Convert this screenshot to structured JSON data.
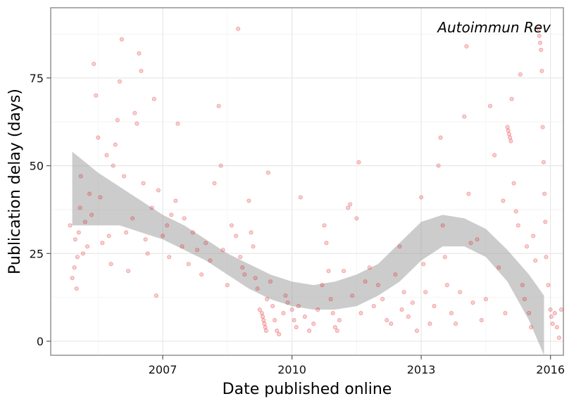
{
  "chart_data": {
    "type": "scatter",
    "title": "",
    "annotation": "Autoimmun Rev",
    "xlabel": "Date published online",
    "ylabel": "Publication delay (days)",
    "x_unit": "year",
    "xlim": [
      2004.4,
      2016.3
    ],
    "ylim": [
      -4,
      95
    ],
    "xticks": [
      2007,
      2010,
      2013,
      2016
    ],
    "yticks": [
      0,
      25,
      50,
      75
    ],
    "grid": true,
    "point_color": "#e31a1c",
    "point_opacity": 0.2,
    "band_color": "#999999",
    "smooth_band": [
      {
        "x": 2004.9,
        "lo": 33,
        "hi": 54
      },
      {
        "x": 2005.5,
        "lo": 33,
        "hi": 48
      },
      {
        "x": 2006.0,
        "lo": 33,
        "hi": 44
      },
      {
        "x": 2006.5,
        "lo": 31,
        "hi": 40
      },
      {
        "x": 2007.0,
        "lo": 29,
        "hi": 36
      },
      {
        "x": 2007.5,
        "lo": 26,
        "hi": 33
      },
      {
        "x": 2008.0,
        "lo": 23,
        "hi": 29
      },
      {
        "x": 2008.5,
        "lo": 19,
        "hi": 25
      },
      {
        "x": 2009.0,
        "lo": 15,
        "hi": 22
      },
      {
        "x": 2009.5,
        "lo": 12,
        "hi": 19
      },
      {
        "x": 2010.0,
        "lo": 10,
        "hi": 17
      },
      {
        "x": 2010.5,
        "lo": 9,
        "hi": 16
      },
      {
        "x": 2011.0,
        "lo": 9,
        "hi": 17
      },
      {
        "x": 2011.5,
        "lo": 10,
        "hi": 19
      },
      {
        "x": 2012.0,
        "lo": 13,
        "hi": 22
      },
      {
        "x": 2012.5,
        "lo": 17,
        "hi": 28
      },
      {
        "x": 2013.0,
        "lo": 23,
        "hi": 34
      },
      {
        "x": 2013.5,
        "lo": 27,
        "hi": 36
      },
      {
        "x": 2014.0,
        "lo": 27,
        "hi": 35
      },
      {
        "x": 2014.5,
        "lo": 24,
        "hi": 32
      },
      {
        "x": 2015.0,
        "lo": 17,
        "hi": 26
      },
      {
        "x": 2015.5,
        "lo": 6,
        "hi": 19
      },
      {
        "x": 2015.85,
        "lo": -4,
        "hi": 13
      }
    ],
    "points": [
      [
        2004.85,
        33
      ],
      [
        2004.9,
        18
      ],
      [
        2004.95,
        21
      ],
      [
        2004.97,
        29
      ],
      [
        2005.0,
        15
      ],
      [
        2005.02,
        24
      ],
      [
        2005.05,
        31
      ],
      [
        2005.08,
        38
      ],
      [
        2005.1,
        47
      ],
      [
        2005.15,
        25
      ],
      [
        2005.2,
        34
      ],
      [
        2005.25,
        27
      ],
      [
        2005.3,
        42
      ],
      [
        2005.35,
        36
      ],
      [
        2005.4,
        79
      ],
      [
        2005.45,
        70
      ],
      [
        2005.5,
        58
      ],
      [
        2005.55,
        41
      ],
      [
        2005.6,
        28
      ],
      [
        2005.7,
        53
      ],
      [
        2005.75,
        30
      ],
      [
        2005.8,
        22
      ],
      [
        2005.85,
        50
      ],
      [
        2005.9,
        56
      ],
      [
        2005.95,
        63
      ],
      [
        2006.0,
        74
      ],
      [
        2006.05,
        86
      ],
      [
        2006.1,
        47
      ],
      [
        2006.15,
        31
      ],
      [
        2006.2,
        20
      ],
      [
        2006.3,
        35
      ],
      [
        2006.35,
        65
      ],
      [
        2006.4,
        62
      ],
      [
        2006.45,
        82
      ],
      [
        2006.5,
        77
      ],
      [
        2006.55,
        45
      ],
      [
        2006.6,
        29
      ],
      [
        2006.65,
        25
      ],
      [
        2006.75,
        38
      ],
      [
        2006.8,
        69
      ],
      [
        2006.85,
        13
      ],
      [
        2006.9,
        43
      ],
      [
        2007.0,
        30
      ],
      [
        2007.1,
        33
      ],
      [
        2007.15,
        24
      ],
      [
        2007.2,
        36
      ],
      [
        2007.3,
        40
      ],
      [
        2007.35,
        62
      ],
      [
        2007.45,
        27
      ],
      [
        2007.5,
        35
      ],
      [
        2007.6,
        22
      ],
      [
        2007.7,
        31
      ],
      [
        2007.8,
        26
      ],
      [
        2007.9,
        19
      ],
      [
        2008.0,
        28
      ],
      [
        2008.1,
        23
      ],
      [
        2008.2,
        45
      ],
      [
        2008.3,
        67
      ],
      [
        2008.35,
        50
      ],
      [
        2008.4,
        26
      ],
      [
        2008.5,
        16
      ],
      [
        2008.6,
        33
      ],
      [
        2008.7,
        30
      ],
      [
        2008.75,
        89
      ],
      [
        2008.8,
        24
      ],
      [
        2008.85,
        21
      ],
      [
        2008.9,
        19
      ],
      [
        2009.0,
        40
      ],
      [
        2009.05,
        31
      ],
      [
        2009.1,
        27
      ],
      [
        2009.15,
        18
      ],
      [
        2009.2,
        15
      ],
      [
        2009.25,
        9
      ],
      [
        2009.3,
        8
      ],
      [
        2009.32,
        7
      ],
      [
        2009.34,
        6
      ],
      [
        2009.36,
        5
      ],
      [
        2009.38,
        4
      ],
      [
        2009.4,
        3
      ],
      [
        2009.42,
        12
      ],
      [
        2009.45,
        48
      ],
      [
        2009.5,
        17
      ],
      [
        2009.55,
        10
      ],
      [
        2009.6,
        6
      ],
      [
        2009.65,
        3
      ],
      [
        2009.7,
        2
      ],
      [
        2009.8,
        8
      ],
      [
        2009.85,
        13
      ],
      [
        2009.9,
        11
      ],
      [
        2010.0,
        9
      ],
      [
        2010.05,
        6
      ],
      [
        2010.1,
        4
      ],
      [
        2010.15,
        10
      ],
      [
        2010.2,
        41
      ],
      [
        2010.3,
        7
      ],
      [
        2010.4,
        3
      ],
      [
        2010.5,
        5
      ],
      [
        2010.6,
        9
      ],
      [
        2010.7,
        16
      ],
      [
        2010.75,
        33
      ],
      [
        2010.8,
        28
      ],
      [
        2010.85,
        20
      ],
      [
        2010.9,
        12
      ],
      [
        2010.95,
        8
      ],
      [
        2011.0,
        4
      ],
      [
        2011.05,
        3
      ],
      [
        2011.1,
        6
      ],
      [
        2011.2,
        20
      ],
      [
        2011.3,
        38
      ],
      [
        2011.35,
        39
      ],
      [
        2011.4,
        13
      ],
      [
        2011.5,
        35
      ],
      [
        2011.55,
        51
      ],
      [
        2011.6,
        8
      ],
      [
        2011.7,
        17
      ],
      [
        2011.8,
        21
      ],
      [
        2011.9,
        10
      ],
      [
        2012.0,
        16
      ],
      [
        2012.1,
        12
      ],
      [
        2012.2,
        6
      ],
      [
        2012.3,
        5
      ],
      [
        2012.4,
        19
      ],
      [
        2012.5,
        27
      ],
      [
        2012.55,
        9
      ],
      [
        2012.6,
        14
      ],
      [
        2012.7,
        7
      ],
      [
        2012.8,
        11
      ],
      [
        2012.9,
        3
      ],
      [
        2013.0,
        41
      ],
      [
        2013.05,
        22
      ],
      [
        2013.1,
        14
      ],
      [
        2013.2,
        5
      ],
      [
        2013.3,
        10
      ],
      [
        2013.4,
        50
      ],
      [
        2013.45,
        58
      ],
      [
        2013.5,
        33
      ],
      [
        2013.55,
        24
      ],
      [
        2013.6,
        16
      ],
      [
        2013.7,
        8
      ],
      [
        2013.8,
        5
      ],
      [
        2013.9,
        14
      ],
      [
        2014.0,
        64
      ],
      [
        2014.05,
        84
      ],
      [
        2014.1,
        42
      ],
      [
        2014.15,
        28
      ],
      [
        2014.2,
        11
      ],
      [
        2014.3,
        29
      ],
      [
        2014.4,
        6
      ],
      [
        2014.5,
        12
      ],
      [
        2014.6,
        67
      ],
      [
        2014.7,
        53
      ],
      [
        2014.8,
        21
      ],
      [
        2014.9,
        40
      ],
      [
        2014.95,
        8
      ],
      [
        2015.0,
        61
      ],
      [
        2015.02,
        60
      ],
      [
        2015.04,
        59
      ],
      [
        2015.06,
        58
      ],
      [
        2015.08,
        57
      ],
      [
        2015.1,
        69
      ],
      [
        2015.15,
        45
      ],
      [
        2015.2,
        37
      ],
      [
        2015.25,
        33
      ],
      [
        2015.3,
        76
      ],
      [
        2015.35,
        16
      ],
      [
        2015.4,
        12
      ],
      [
        2015.45,
        27
      ],
      [
        2015.5,
        8
      ],
      [
        2015.55,
        4
      ],
      [
        2015.6,
        30
      ],
      [
        2015.65,
        23
      ],
      [
        2015.72,
        89
      ],
      [
        2015.74,
        87
      ],
      [
        2015.76,
        85
      ],
      [
        2015.78,
        83
      ],
      [
        2015.8,
        77
      ],
      [
        2015.82,
        61
      ],
      [
        2015.84,
        51
      ],
      [
        2015.86,
        42
      ],
      [
        2015.88,
        34
      ],
      [
        2015.9,
        24
      ],
      [
        2015.95,
        16
      ],
      [
        2016.0,
        9
      ],
      [
        2016.02,
        7
      ],
      [
        2016.05,
        5
      ],
      [
        2016.1,
        8
      ],
      [
        2016.15,
        4
      ],
      [
        2016.2,
        1
      ],
      [
        2016.25,
        9
      ]
    ]
  }
}
